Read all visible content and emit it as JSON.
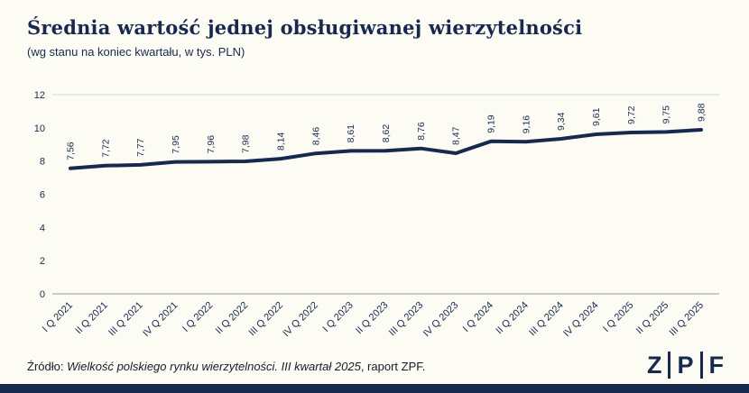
{
  "header": {
    "title": "Średnia wartość jednej obsługiwanej wierzytelności",
    "subtitle": "(wg stanu na koniec kwartału, w tys. PLN)"
  },
  "footer": {
    "prefix": "Źródło: ",
    "source_italic": "Wielkość polskiego rynku wierzytelności. III kwartał 2025",
    "suffix": ", raport ZPF."
  },
  "logo": {
    "letters": [
      "Z",
      "P",
      "F"
    ]
  },
  "colors": {
    "accent": "#17294f",
    "line": "#17294f",
    "grid_top": "#d9d9d2",
    "axis": "#9b9b94",
    "background": "#fcfcf5",
    "bottom_bar": "#17294f"
  },
  "chart_data": {
    "type": "line",
    "title": "Średnia wartość jednej obsługiwanej wierzytelności",
    "subtitle": "(wg stanu na koniec kwartału, w tys. PLN)",
    "unit": "tys. PLN",
    "series_name": "Średnia wartość jednej obsługiwanej wierzytelności",
    "categories": [
      "I Q 2021",
      "II Q 2021",
      "III Q 2021",
      "IV Q 2021",
      "I Q 2022",
      "II Q 2022",
      "III Q 2022",
      "IV Q 2022",
      "I Q 2023",
      "II Q 2023",
      "III Q 2023",
      "IV Q 2023",
      "I Q 2024",
      "II Q 2024",
      "III Q 2024",
      "IV Q 2024",
      "I Q 2025",
      "II Q 2025",
      "III Q 2025"
    ],
    "values": [
      7.56,
      7.72,
      7.77,
      7.95,
      7.96,
      7.98,
      8.14,
      8.46,
      8.61,
      8.62,
      8.76,
      8.47,
      9.19,
      9.16,
      9.34,
      9.61,
      9.72,
      9.75,
      9.88
    ],
    "value_labels": [
      "7,56",
      "7,72",
      "7,77",
      "7,95",
      "7,96",
      "7,98",
      "8,14",
      "8,46",
      "8,61",
      "8,62",
      "8,76",
      "8,47",
      "9,19",
      "9,16",
      "9,34",
      "9,61",
      "9,72",
      "9,75",
      "9,88"
    ],
    "ylim": [
      0,
      12
    ],
    "yticks": [
      0,
      2,
      4,
      6,
      8,
      10,
      12
    ],
    "grid": "horizontal-top-line-only",
    "legend": "none",
    "x_label_rotation": -45,
    "value_label_rotation": -90
  }
}
